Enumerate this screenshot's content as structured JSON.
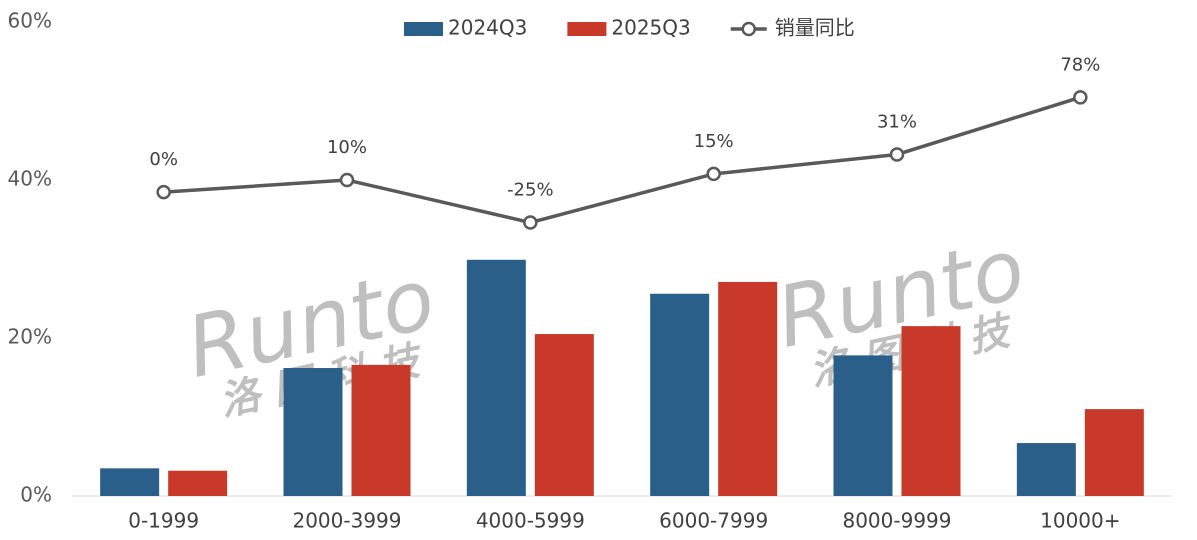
{
  "chart_data": {
    "type": "bar",
    "watermark": {
      "text": "Runto",
      "subtext": "洛图科技"
    },
    "categories": [
      "0-1999",
      "2000-3999",
      "4000-5999",
      "6000-7999",
      "8000-9999",
      "10000+"
    ],
    "series": [
      {
        "name": "2024Q3",
        "color": "#2a5f8a",
        "values": [
          3.5,
          16.2,
          29.9,
          25.6,
          17.8,
          6.7
        ]
      },
      {
        "name": "2025Q3",
        "color": "#c9392a",
        "values": [
          3.2,
          16.6,
          20.5,
          27.1,
          21.5,
          11.0
        ]
      },
      {
        "name": "销量同比",
        "type": "line",
        "axis": "y2",
        "color": "#595959",
        "values": [
          0,
          10,
          -25,
          15,
          31,
          78
        ],
        "value_labels": [
          "0%",
          "10%",
          "-25%",
          "15%",
          "31%",
          "78%"
        ]
      }
    ],
    "ylim": [
      0,
      60
    ],
    "yticks": [
      {
        "value": 0,
        "label": "0%"
      },
      {
        "value": 20,
        "label": "20%"
      },
      {
        "value": 40,
        "label": "40%"
      },
      {
        "value": 60,
        "label": "60%"
      }
    ],
    "y2lim": [
      -250,
      140
    ]
  }
}
